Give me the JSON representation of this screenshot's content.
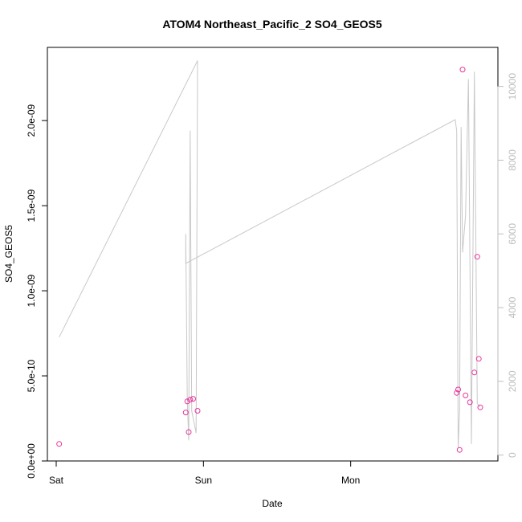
{
  "chart_data": {
    "type": "scatter",
    "title": "ATOM4 Northeast_Pacific_2 SO4_GEOS5",
    "xlabel": "Date",
    "ylabel": "SO4_GEOS5",
    "x_ticks": [
      {
        "label": "Sat",
        "value": 0
      },
      {
        "label": "Sun",
        "value": 1
      },
      {
        "label": "Mon",
        "value": 2
      }
    ],
    "xlim": [
      -0.06,
      3.0
    ],
    "y_left": {
      "ylim": [
        0,
        2.43e-09
      ],
      "ticks": [
        {
          "label": "0.0e+00",
          "value": 0
        },
        {
          "label": "5.0e-10",
          "value": 5e-10
        },
        {
          "label": "1.0e-09",
          "value": 1e-09
        },
        {
          "label": "1.5e-09",
          "value": 1.5e-09
        },
        {
          "label": "2.0e-09",
          "value": 2e-09
        }
      ]
    },
    "y_right": {
      "ylim": [
        -160,
        11060
      ],
      "ticks": [
        {
          "label": "0",
          "value": 0
        },
        {
          "label": "2000",
          "value": 2000
        },
        {
          "label": "4000",
          "value": 4000
        },
        {
          "label": "6000",
          "value": 6000
        },
        {
          "label": "8000",
          "value": 8000
        },
        {
          "label": "10000",
          "value": 10000
        }
      ]
    },
    "series": [
      {
        "axis": "left",
        "style": "points",
        "color": "#e8359b",
        "x": [
          0.02,
          0.88,
          0.89,
          0.9,
          0.91,
          0.93,
          0.96,
          2.72,
          2.73,
          2.74,
          2.76,
          2.78,
          2.81,
          2.84,
          2.86,
          2.87,
          2.88
        ],
        "y": [
          1e-10,
          2.85e-10,
          3.5e-10,
          1.7e-10,
          3.6e-10,
          3.65e-10,
          2.95e-10,
          4e-10,
          4.2e-10,
          6.5e-11,
          2.3e-09,
          3.85e-10,
          3.45e-10,
          5.2e-10,
          1.2e-09,
          6e-10,
          3.15e-10
        ]
      },
      {
        "axis": "right",
        "style": "line",
        "color": "#c8c8c8",
        "x": [
          0.02,
          0.96,
          0.95,
          0.92,
          0.91,
          0.9,
          0.89,
          0.88,
          0.88,
          2.71,
          2.72,
          2.73,
          2.74,
          2.75,
          2.76,
          2.78,
          2.8,
          2.82,
          2.84,
          2.86,
          2.88
        ],
        "y": [
          3200,
          10700,
          600,
          1200,
          8800,
          400,
          1500,
          6000,
          5200,
          9100,
          8800,
          200,
          1200,
          8900,
          5500,
          6500,
          10200,
          300,
          10400,
          1400,
          1300
        ]
      }
    ]
  }
}
